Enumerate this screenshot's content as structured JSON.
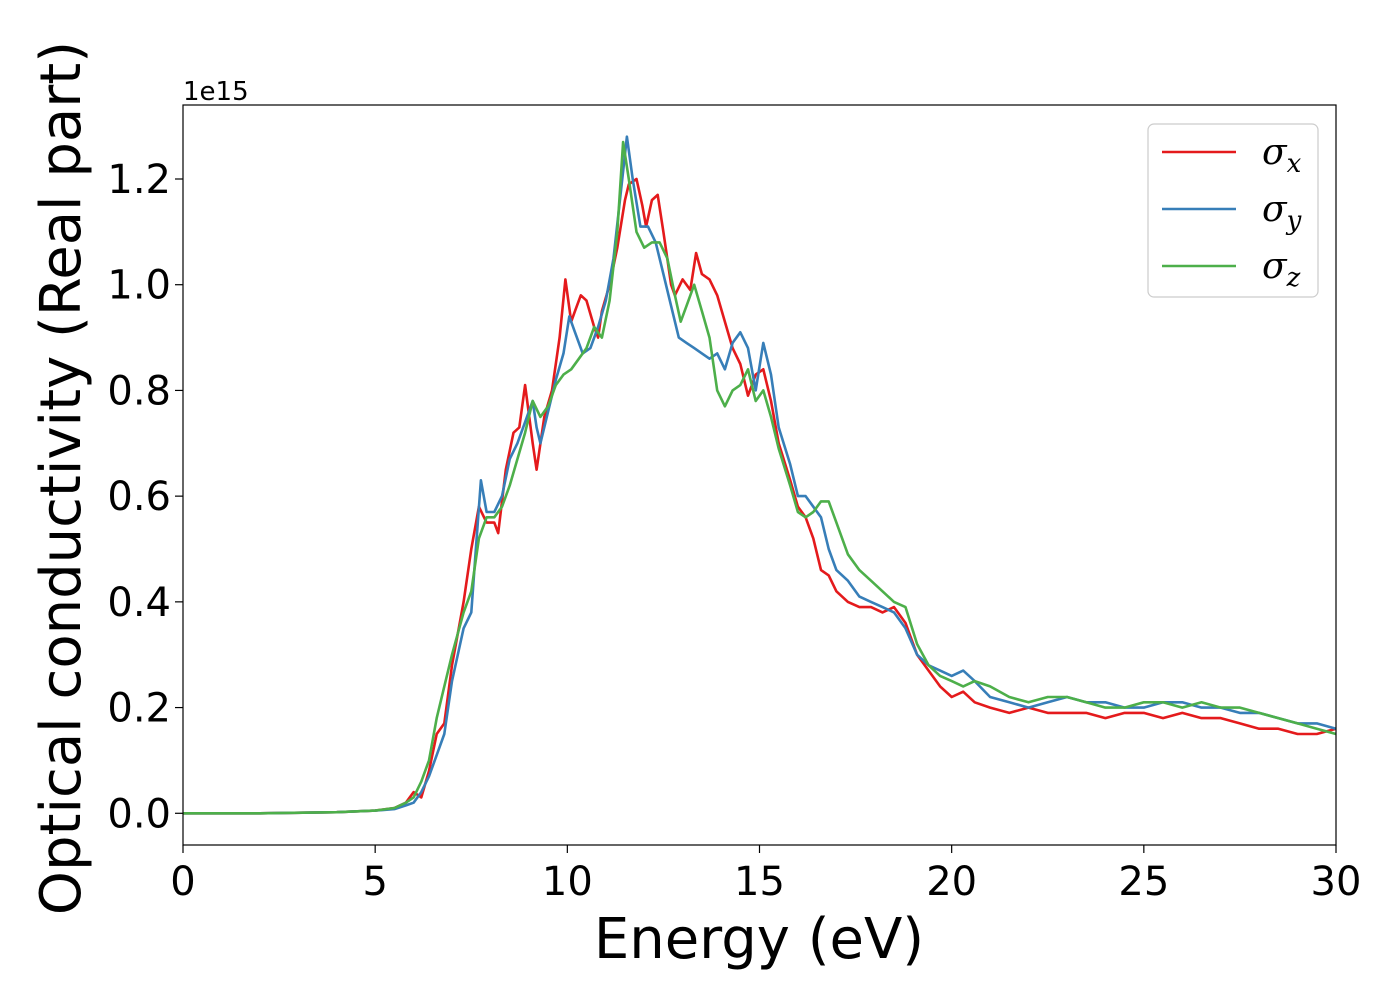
{
  "chart_data": {
    "type": "line",
    "title": "",
    "xlabel": "Energy (eV)",
    "ylabel": "Optical conductivity (Real part)",
    "y_offset_label": "1e15",
    "xlim": [
      0,
      30
    ],
    "ylim": [
      -0.06,
      1.34
    ],
    "xticks": [
      0,
      5,
      10,
      15,
      20,
      25,
      30
    ],
    "yticks": [
      0.0,
      0.2,
      0.4,
      0.6,
      0.8,
      1.0,
      1.2
    ],
    "grid": false,
    "legend_position": "top-right",
    "series": [
      {
        "name": "σx",
        "base": "σ",
        "sub": "x",
        "color": "#e41a1c",
        "points": [
          [
            0,
            0
          ],
          [
            2,
            0
          ],
          [
            4,
            0.002
          ],
          [
            5,
            0.005
          ],
          [
            5.5,
            0.01
          ],
          [
            5.8,
            0.02
          ],
          [
            6,
            0.04
          ],
          [
            6.2,
            0.03
          ],
          [
            6.4,
            0.08
          ],
          [
            6.6,
            0.15
          ],
          [
            6.8,
            0.17
          ],
          [
            7,
            0.28
          ],
          [
            7.3,
            0.4
          ],
          [
            7.5,
            0.5
          ],
          [
            7.7,
            0.58
          ],
          [
            7.9,
            0.55
          ],
          [
            8.1,
            0.55
          ],
          [
            8.2,
            0.53
          ],
          [
            8.4,
            0.65
          ],
          [
            8.6,
            0.72
          ],
          [
            8.75,
            0.73
          ],
          [
            8.9,
            0.81
          ],
          [
            9.1,
            0.7
          ],
          [
            9.2,
            0.65
          ],
          [
            9.4,
            0.75
          ],
          [
            9.6,
            0.8
          ],
          [
            9.8,
            0.9
          ],
          [
            9.95,
            1.01
          ],
          [
            10.1,
            0.93
          ],
          [
            10.2,
            0.95
          ],
          [
            10.35,
            0.98
          ],
          [
            10.5,
            0.97
          ],
          [
            10.7,
            0.92
          ],
          [
            10.8,
            0.9
          ],
          [
            10.9,
            0.95
          ],
          [
            11.1,
            1.0
          ],
          [
            11.3,
            1.07
          ],
          [
            11.5,
            1.16
          ],
          [
            11.6,
            1.19
          ],
          [
            11.8,
            1.2
          ],
          [
            11.95,
            1.15
          ],
          [
            12.05,
            1.11
          ],
          [
            12.2,
            1.16
          ],
          [
            12.35,
            1.17
          ],
          [
            12.5,
            1.1
          ],
          [
            12.7,
            1.0
          ],
          [
            12.8,
            0.98
          ],
          [
            13.0,
            1.01
          ],
          [
            13.2,
            0.99
          ],
          [
            13.35,
            1.06
          ],
          [
            13.5,
            1.02
          ],
          [
            13.7,
            1.01
          ],
          [
            13.9,
            0.98
          ],
          [
            14.1,
            0.93
          ],
          [
            14.3,
            0.88
          ],
          [
            14.5,
            0.85
          ],
          [
            14.7,
            0.79
          ],
          [
            14.9,
            0.83
          ],
          [
            15.1,
            0.84
          ],
          [
            15.3,
            0.78
          ],
          [
            15.5,
            0.7
          ],
          [
            15.8,
            0.63
          ],
          [
            16.0,
            0.58
          ],
          [
            16.2,
            0.56
          ],
          [
            16.4,
            0.52
          ],
          [
            16.6,
            0.46
          ],
          [
            16.8,
            0.45
          ],
          [
            17.0,
            0.42
          ],
          [
            17.3,
            0.4
          ],
          [
            17.6,
            0.39
          ],
          [
            17.9,
            0.39
          ],
          [
            18.2,
            0.38
          ],
          [
            18.5,
            0.39
          ],
          [
            18.8,
            0.36
          ],
          [
            19.1,
            0.3
          ],
          [
            19.4,
            0.27
          ],
          [
            19.7,
            0.24
          ],
          [
            20.0,
            0.22
          ],
          [
            20.3,
            0.23
          ],
          [
            20.6,
            0.21
          ],
          [
            21.0,
            0.2
          ],
          [
            21.5,
            0.19
          ],
          [
            22.0,
            0.2
          ],
          [
            22.5,
            0.19
          ],
          [
            23.0,
            0.19
          ],
          [
            23.5,
            0.19
          ],
          [
            24.0,
            0.18
          ],
          [
            24.5,
            0.19
          ],
          [
            25.0,
            0.19
          ],
          [
            25.5,
            0.18
          ],
          [
            26.0,
            0.19
          ],
          [
            26.5,
            0.18
          ],
          [
            27.0,
            0.18
          ],
          [
            27.5,
            0.17
          ],
          [
            28.0,
            0.16
          ],
          [
            28.5,
            0.16
          ],
          [
            29.0,
            0.15
          ],
          [
            29.5,
            0.15
          ],
          [
            30.0,
            0.16
          ]
        ]
      },
      {
        "name": "σy",
        "base": "σ",
        "sub": "y",
        "color": "#377eb8",
        "points": [
          [
            0,
            0
          ],
          [
            2,
            0
          ],
          [
            4,
            0.002
          ],
          [
            5,
            0.005
          ],
          [
            5.5,
            0.008
          ],
          [
            5.8,
            0.015
          ],
          [
            6,
            0.02
          ],
          [
            6.2,
            0.04
          ],
          [
            6.4,
            0.07
          ],
          [
            6.6,
            0.11
          ],
          [
            6.8,
            0.15
          ],
          [
            7,
            0.25
          ],
          [
            7.3,
            0.35
          ],
          [
            7.5,
            0.38
          ],
          [
            7.6,
            0.48
          ],
          [
            7.75,
            0.63
          ],
          [
            7.9,
            0.57
          ],
          [
            8.1,
            0.57
          ],
          [
            8.3,
            0.6
          ],
          [
            8.5,
            0.67
          ],
          [
            8.7,
            0.7
          ],
          [
            8.9,
            0.74
          ],
          [
            9.1,
            0.78
          ],
          [
            9.2,
            0.73
          ],
          [
            9.3,
            0.7
          ],
          [
            9.5,
            0.76
          ],
          [
            9.7,
            0.82
          ],
          [
            9.9,
            0.87
          ],
          [
            10.05,
            0.94
          ],
          [
            10.2,
            0.91
          ],
          [
            10.4,
            0.87
          ],
          [
            10.6,
            0.88
          ],
          [
            10.8,
            0.92
          ],
          [
            11.0,
            0.97
          ],
          [
            11.2,
            1.05
          ],
          [
            11.4,
            1.18
          ],
          [
            11.55,
            1.28
          ],
          [
            11.7,
            1.2
          ],
          [
            11.9,
            1.11
          ],
          [
            12.1,
            1.11
          ],
          [
            12.3,
            1.08
          ],
          [
            12.5,
            1.02
          ],
          [
            12.7,
            0.96
          ],
          [
            12.9,
            0.9
          ],
          [
            13.1,
            0.89
          ],
          [
            13.3,
            0.88
          ],
          [
            13.5,
            0.87
          ],
          [
            13.7,
            0.86
          ],
          [
            13.9,
            0.87
          ],
          [
            14.1,
            0.84
          ],
          [
            14.3,
            0.89
          ],
          [
            14.5,
            0.91
          ],
          [
            14.7,
            0.88
          ],
          [
            14.9,
            0.8
          ],
          [
            15.1,
            0.89
          ],
          [
            15.3,
            0.83
          ],
          [
            15.5,
            0.73
          ],
          [
            15.8,
            0.66
          ],
          [
            16.0,
            0.6
          ],
          [
            16.2,
            0.6
          ],
          [
            16.4,
            0.58
          ],
          [
            16.6,
            0.56
          ],
          [
            16.8,
            0.5
          ],
          [
            17.0,
            0.46
          ],
          [
            17.3,
            0.44
          ],
          [
            17.6,
            0.41
          ],
          [
            17.9,
            0.4
          ],
          [
            18.2,
            0.39
          ],
          [
            18.5,
            0.38
          ],
          [
            18.8,
            0.35
          ],
          [
            19.1,
            0.3
          ],
          [
            19.4,
            0.28
          ],
          [
            19.7,
            0.27
          ],
          [
            20.0,
            0.26
          ],
          [
            20.3,
            0.27
          ],
          [
            20.6,
            0.25
          ],
          [
            21.0,
            0.22
          ],
          [
            21.5,
            0.21
          ],
          [
            22.0,
            0.2
          ],
          [
            22.5,
            0.21
          ],
          [
            23.0,
            0.22
          ],
          [
            23.5,
            0.21
          ],
          [
            24.0,
            0.21
          ],
          [
            24.5,
            0.2
          ],
          [
            25.0,
            0.2
          ],
          [
            25.5,
            0.21
          ],
          [
            26.0,
            0.21
          ],
          [
            26.5,
            0.2
          ],
          [
            27.0,
            0.2
          ],
          [
            27.5,
            0.19
          ],
          [
            28.0,
            0.19
          ],
          [
            28.5,
            0.18
          ],
          [
            29.0,
            0.17
          ],
          [
            29.5,
            0.17
          ],
          [
            30.0,
            0.16
          ]
        ]
      },
      {
        "name": "σz",
        "base": "σ",
        "sub": "z",
        "color": "#4daf4a",
        "points": [
          [
            0,
            0
          ],
          [
            2,
            0
          ],
          [
            4,
            0.002
          ],
          [
            5,
            0.005
          ],
          [
            5.5,
            0.01
          ],
          [
            5.8,
            0.02
          ],
          [
            6,
            0.03
          ],
          [
            6.2,
            0.06
          ],
          [
            6.4,
            0.1
          ],
          [
            6.6,
            0.18
          ],
          [
            6.8,
            0.24
          ],
          [
            7,
            0.3
          ],
          [
            7.3,
            0.38
          ],
          [
            7.5,
            0.42
          ],
          [
            7.7,
            0.52
          ],
          [
            7.9,
            0.56
          ],
          [
            8.1,
            0.56
          ],
          [
            8.3,
            0.58
          ],
          [
            8.5,
            0.62
          ],
          [
            8.7,
            0.67
          ],
          [
            8.9,
            0.72
          ],
          [
            9.1,
            0.78
          ],
          [
            9.3,
            0.75
          ],
          [
            9.5,
            0.77
          ],
          [
            9.7,
            0.81
          ],
          [
            9.9,
            0.83
          ],
          [
            10.1,
            0.84
          ],
          [
            10.3,
            0.86
          ],
          [
            10.5,
            0.88
          ],
          [
            10.7,
            0.92
          ],
          [
            10.9,
            0.9
          ],
          [
            11.1,
            0.97
          ],
          [
            11.3,
            1.1
          ],
          [
            11.45,
            1.27
          ],
          [
            11.6,
            1.2
          ],
          [
            11.8,
            1.1
          ],
          [
            12.0,
            1.07
          ],
          [
            12.2,
            1.08
          ],
          [
            12.4,
            1.08
          ],
          [
            12.6,
            1.05
          ],
          [
            12.8,
            0.98
          ],
          [
            12.95,
            0.93
          ],
          [
            13.1,
            0.96
          ],
          [
            13.3,
            1.0
          ],
          [
            13.5,
            0.95
          ],
          [
            13.7,
            0.9
          ],
          [
            13.9,
            0.8
          ],
          [
            14.1,
            0.77
          ],
          [
            14.3,
            0.8
          ],
          [
            14.5,
            0.81
          ],
          [
            14.7,
            0.84
          ],
          [
            14.9,
            0.78
          ],
          [
            15.1,
            0.8
          ],
          [
            15.3,
            0.75
          ],
          [
            15.5,
            0.69
          ],
          [
            15.8,
            0.62
          ],
          [
            16.0,
            0.57
          ],
          [
            16.2,
            0.56
          ],
          [
            16.4,
            0.57
          ],
          [
            16.6,
            0.59
          ],
          [
            16.8,
            0.59
          ],
          [
            17.0,
            0.55
          ],
          [
            17.3,
            0.49
          ],
          [
            17.6,
            0.46
          ],
          [
            17.9,
            0.44
          ],
          [
            18.2,
            0.42
          ],
          [
            18.5,
            0.4
          ],
          [
            18.8,
            0.39
          ],
          [
            19.1,
            0.32
          ],
          [
            19.4,
            0.28
          ],
          [
            19.7,
            0.26
          ],
          [
            20.0,
            0.25
          ],
          [
            20.3,
            0.24
          ],
          [
            20.6,
            0.25
          ],
          [
            21.0,
            0.24
          ],
          [
            21.5,
            0.22
          ],
          [
            22.0,
            0.21
          ],
          [
            22.5,
            0.22
          ],
          [
            23.0,
            0.22
          ],
          [
            23.5,
            0.21
          ],
          [
            24.0,
            0.2
          ],
          [
            24.5,
            0.2
          ],
          [
            25.0,
            0.21
          ],
          [
            25.5,
            0.21
          ],
          [
            26.0,
            0.2
          ],
          [
            26.5,
            0.21
          ],
          [
            27.0,
            0.2
          ],
          [
            27.5,
            0.2
          ],
          [
            28.0,
            0.19
          ],
          [
            28.5,
            0.18
          ],
          [
            29.0,
            0.17
          ],
          [
            29.5,
            0.16
          ],
          [
            30.0,
            0.15
          ]
        ]
      }
    ]
  }
}
